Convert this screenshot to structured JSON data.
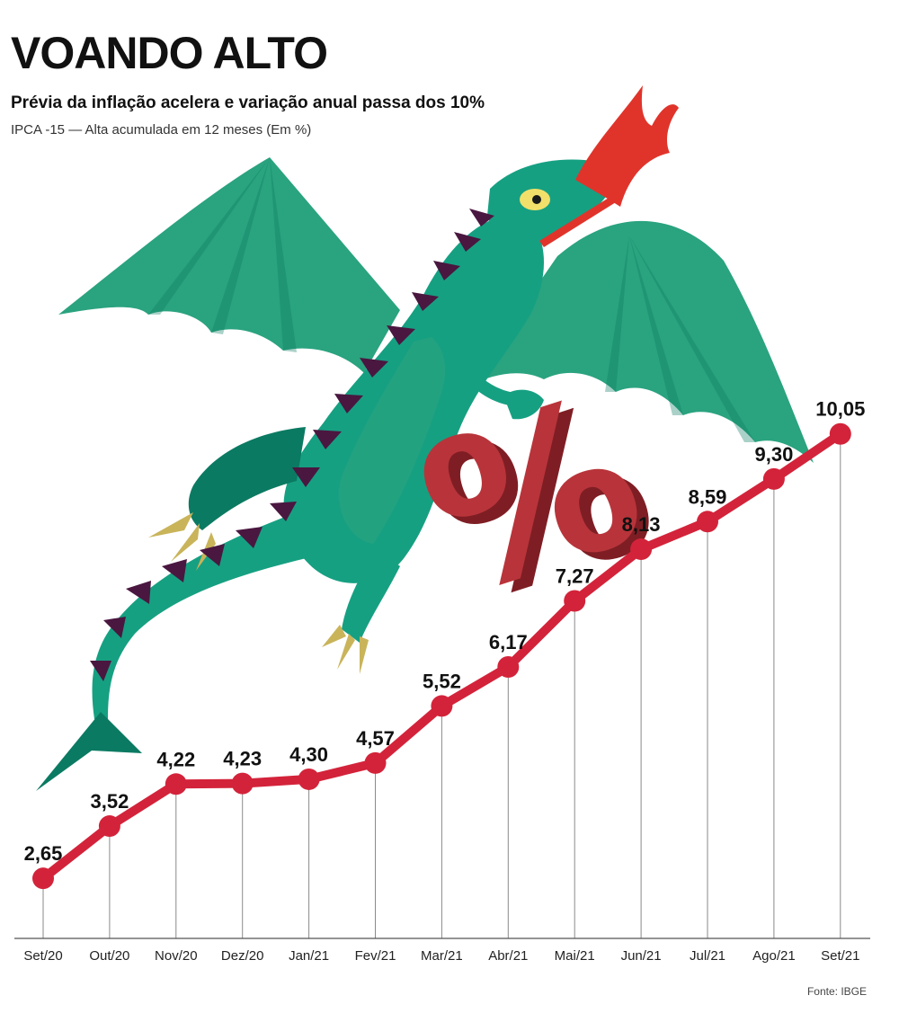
{
  "header": {
    "title": "VOANDO ALTO",
    "subtitle": "Prévia da inflação acelera e variação anual passa dos 10%",
    "note": "IPCA -15 — Alta acumulada em 12 meses (Em %)"
  },
  "source": "Fonte: IBGE",
  "illustration": {
    "percent_sign": "%"
  },
  "colors": {
    "line": "#d3233a",
    "dragon": "#16a082",
    "dragon_dark": "#0b7a62",
    "wing": "#2aa37f",
    "spike": "#4a1740",
    "claw": "#c9b45a",
    "fire": "#e0342b",
    "percent": "#b8343a"
  },
  "chart_data": {
    "type": "line",
    "title": "VOANDO ALTO",
    "subtitle": "Prévia da inflação acelera e variação anual passa dos 10%",
    "ylabel": "IPCA -15 — Alta acumulada em 12 meses (Em %)",
    "xlabel": "",
    "categories": [
      "Set/20",
      "Out/20",
      "Nov/20",
      "Dez/20",
      "Jan/21",
      "Fev/21",
      "Mar/21",
      "Abr/21",
      "Mai/21",
      "Jun/21",
      "Jul/21",
      "Ago/21",
      "Set/21"
    ],
    "values": [
      2.65,
      3.52,
      4.22,
      4.23,
      4.3,
      4.57,
      5.52,
      6.17,
      7.27,
      8.13,
      8.59,
      9.3,
      10.05
    ],
    "labels": [
      "2,65",
      "3,52",
      "4,22",
      "4,23",
      "4,30",
      "4,57",
      "5,52",
      "6,17",
      "7,27",
      "8,13",
      "8,59",
      "9,30",
      "10,05"
    ],
    "ylim": [
      1.65,
      10.6
    ],
    "grid": false,
    "legend": "none"
  }
}
